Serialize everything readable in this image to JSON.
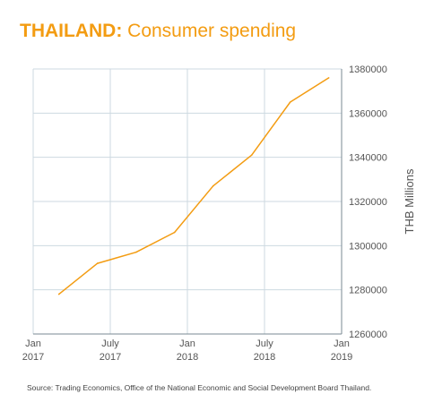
{
  "title": {
    "bold": "THAILAND:",
    "rest": "Consumer spending"
  },
  "source": "Source: Trading Economics, Office of the National Economic and Social Development Board Thailand.",
  "colors": {
    "accent": "#f39c12",
    "grid": "#cdd9e0",
    "axis": "#7a8a93",
    "text": "#555555"
  },
  "chart_data": {
    "type": "line",
    "title": "THAILAND: Consumer spending",
    "xlabel": "",
    "ylabel": "THB Millions",
    "x_ticks": [
      {
        "x": "2017-01",
        "line1": "Jan",
        "line2": "2017"
      },
      {
        "x": "2017-07",
        "line1": "July",
        "line2": "2017"
      },
      {
        "x": "2018-01",
        "line1": "Jan",
        "line2": "2018"
      },
      {
        "x": "2018-07",
        "line1": "July",
        "line2": "2018"
      },
      {
        "x": "2019-01",
        "line1": "Jan",
        "line2": "2019"
      }
    ],
    "y_ticks": [
      "1260000",
      "1280000",
      "1300000",
      "1320000",
      "1340000",
      "1360000",
      "1380000"
    ],
    "ylim": [
      1260000,
      1380000
    ],
    "xlim": [
      "2017-01",
      "2019-01"
    ],
    "grid": true,
    "series": [
      {
        "x": [
          "2017-03",
          "2017-06",
          "2017-09",
          "2017-12",
          "2018-03",
          "2018-06",
          "2018-09",
          "2018-12"
        ],
        "values": [
          1278000,
          1292000,
          1297000,
          1306000,
          1327000,
          1341000,
          1365000,
          1376000
        ]
      }
    ]
  }
}
